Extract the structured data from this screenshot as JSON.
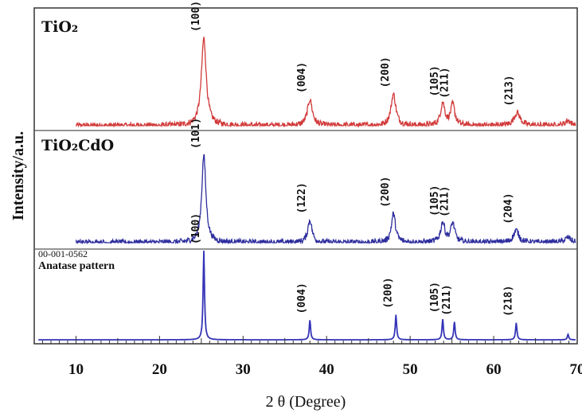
{
  "chart_data": {
    "type": "line",
    "xlabel": "2 θ (Degree)",
    "ylabel": "Intensity/a.u.",
    "xlim": [
      5,
      70
    ],
    "xticks": [
      10,
      20,
      30,
      40,
      50,
      60,
      70
    ],
    "grid": false,
    "panels": [
      {
        "id": "tio2",
        "title": "TiO₂",
        "color": "#d23a3a",
        "noise": 0.035,
        "peaks": [
          {
            "x": 25.3,
            "h": 1.0,
            "w": 0.35,
            "label": "(100)"
          },
          {
            "x": 38.0,
            "h": 0.3,
            "w": 0.35,
            "label": "(004)"
          },
          {
            "x": 48.0,
            "h": 0.36,
            "w": 0.35,
            "label": "(200)"
          },
          {
            "x": 53.9,
            "h": 0.26,
            "w": 0.3,
            "label": "(105)"
          },
          {
            "x": 55.1,
            "h": 0.24,
            "w": 0.3,
            "label": "(211)"
          },
          {
            "x": 62.8,
            "h": 0.15,
            "w": 0.45,
            "label": "(213)"
          },
          {
            "x": 68.9,
            "h": 0.06,
            "w": 0.4,
            "label": ""
          }
        ]
      },
      {
        "id": "tio2cdo",
        "title": "TiO₂CdO",
        "color": "#2e2e9e",
        "noise": 0.035,
        "peaks": [
          {
            "x": 25.3,
            "h": 1.0,
            "w": 0.3,
            "label": "(101)"
          },
          {
            "x": 38.0,
            "h": 0.26,
            "w": 0.3,
            "label": "(122)"
          },
          {
            "x": 48.0,
            "h": 0.33,
            "w": 0.3,
            "label": "(200)"
          },
          {
            "x": 53.9,
            "h": 0.23,
            "w": 0.3,
            "label": "(105)"
          },
          {
            "x": 55.1,
            "h": 0.22,
            "w": 0.3,
            "label": "(211)"
          },
          {
            "x": 62.7,
            "h": 0.14,
            "w": 0.4,
            "label": "(204)"
          },
          {
            "x": 68.9,
            "h": 0.06,
            "w": 0.4,
            "label": ""
          }
        ]
      },
      {
        "id": "anatase",
        "title": "",
        "ref_code": "00-001-0562",
        "ref_label": "Anatase pattern",
        "color": "#3434b8",
        "noise": 0,
        "peaks": [
          {
            "x": 25.3,
            "h": 1.0,
            "w": 0.1,
            "label": "(100)"
          },
          {
            "x": 38.0,
            "h": 0.22,
            "w": 0.1,
            "label": "(004)"
          },
          {
            "x": 48.3,
            "h": 0.28,
            "w": 0.1,
            "label": "(200)"
          },
          {
            "x": 53.9,
            "h": 0.23,
            "w": 0.1,
            "label": "(105)"
          },
          {
            "x": 55.3,
            "h": 0.2,
            "w": 0.1,
            "label": "(211)"
          },
          {
            "x": 62.7,
            "h": 0.19,
            "w": 0.1,
            "label": "(218)"
          },
          {
            "x": 68.9,
            "h": 0.06,
            "w": 0.1,
            "label": ""
          }
        ]
      }
    ]
  }
}
